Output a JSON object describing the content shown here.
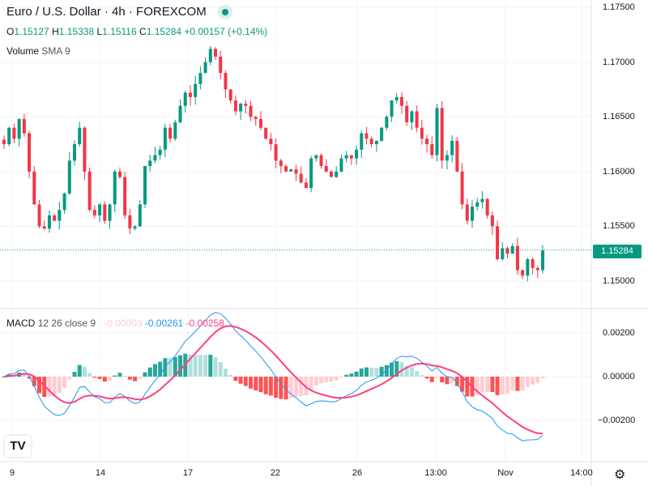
{
  "header": {
    "title": "Euro / U.S. Dollar · 4h · FOREXCOM",
    "open_label": "O",
    "open": "1.15127",
    "high_label": "H",
    "high": "1.15338",
    "low_label": "L",
    "low": "1.15116",
    "close_label": "C",
    "close": "1.15284",
    "change": "+0.00157 (+0.14%)",
    "volume_label": "Volume",
    "volume_sma": "SMA 9"
  },
  "macd_legend": {
    "label": "MACD",
    "params": "12 26 close 9",
    "histogram": "-0.00003",
    "macd": "-0.00261",
    "signal": "-0.00258"
  },
  "price_axis": [
    "1.17500",
    "1.17000",
    "1.16500",
    "1.16000",
    "1.15500",
    "1.15000"
  ],
  "macd_axis": [
    "0.00200",
    "0.00000",
    "−0.00200"
  ],
  "current_price": "1.15284",
  "time_axis": [
    "9",
    "14",
    "17",
    "22",
    "26",
    "13:00",
    "Nov",
    "14:00"
  ],
  "logo_text": "TV",
  "colors": {
    "up": "#089981",
    "down": "#f23645",
    "macd": "#2196f3",
    "signal": "#ff4081"
  },
  "chart_data": {
    "type": "candlestick",
    "symbol": "EURUSD",
    "interval": "4h",
    "ylim": [
      1.148,
      1.1755
    ],
    "closes": [
      1.1625,
      1.164,
      1.163,
      1.1648,
      1.1635,
      1.16,
      1.157,
      1.155,
      1.1548,
      1.156,
      1.1555,
      1.1565,
      1.158,
      1.161,
      1.1625,
      1.164,
      1.16,
      1.1565,
      1.156,
      1.157,
      1.1555,
      1.157,
      1.16,
      1.1595,
      1.156,
      1.1548,
      1.155,
      1.157,
      1.1605,
      1.161,
      1.1615,
      1.162,
      1.164,
      1.163,
      1.1645,
      1.166,
      1.1672,
      1.1668,
      1.168,
      1.169,
      1.17,
      1.1712,
      1.1705,
      1.169,
      1.1675,
      1.1665,
      1.1655,
      1.1662,
      1.166,
      1.165,
      1.1648,
      1.164,
      1.163,
      1.1625,
      1.161,
      1.1605,
      1.16,
      1.1602,
      1.1598,
      1.159,
      1.1585,
      1.1612,
      1.1615,
      1.1605,
      1.16,
      1.1595,
      1.16,
      1.1612,
      1.1615,
      1.1612,
      1.162,
      1.1635,
      1.163,
      1.1625,
      1.1628,
      1.164,
      1.165,
      1.1665,
      1.1668,
      1.166,
      1.1645,
      1.1655,
      1.164,
      1.163,
      1.1625,
      1.1615,
      1.1658,
      1.161,
      1.1615,
      1.1628,
      1.16,
      1.157,
      1.1555,
      1.1568,
      1.1572,
      1.1575,
      1.156,
      1.155,
      1.152,
      1.153,
      1.1525,
      1.1532,
      1.151,
      1.1505,
      1.152,
      1.1512,
      1.151,
      1.1528
    ],
    "macd_ylim": [
      -0.0031,
      0.0029
    ]
  }
}
